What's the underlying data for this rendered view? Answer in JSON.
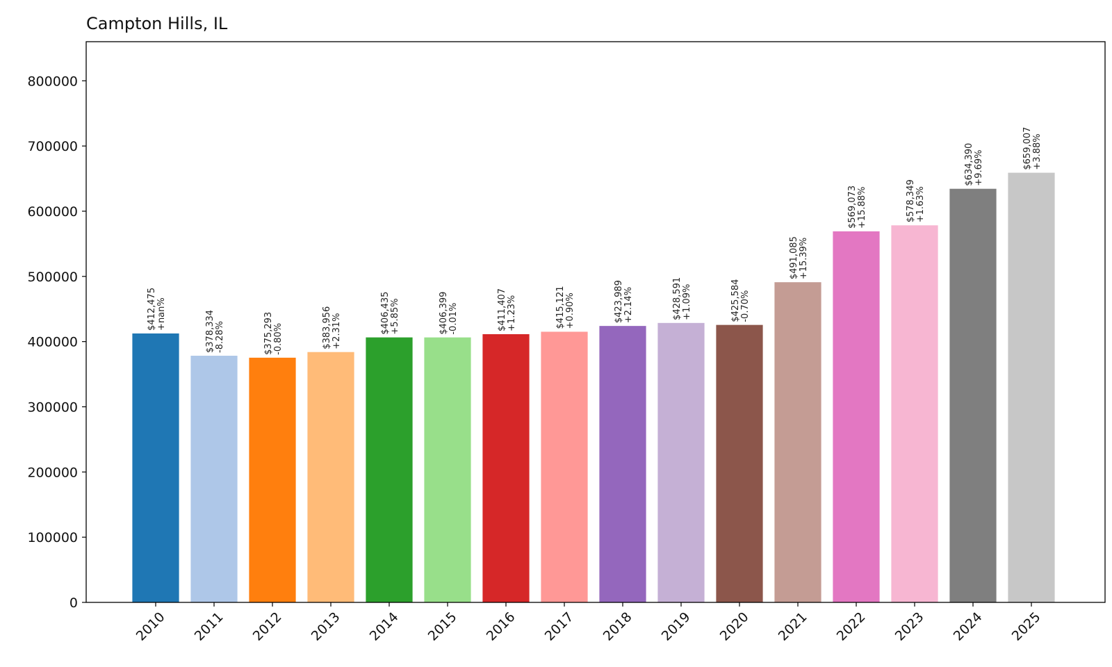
{
  "chart_data": {
    "type": "bar",
    "title": "Campton Hills, IL",
    "xlabel": "",
    "ylabel": "",
    "ylim": [
      0,
      860000
    ],
    "yticks": [
      0,
      100000,
      200000,
      300000,
      400000,
      500000,
      600000,
      700000,
      800000
    ],
    "grid": false,
    "categories": [
      "2010",
      "2011",
      "2012",
      "2013",
      "2014",
      "2015",
      "2016",
      "2017",
      "2018",
      "2019",
      "2020",
      "2021",
      "2022",
      "2023",
      "2024",
      "2025"
    ],
    "values": [
      412475,
      378334,
      375293,
      383956,
      406435,
      406399,
      411407,
      415121,
      423989,
      428591,
      425584,
      491085,
      569073,
      578349,
      634390,
      659007
    ],
    "value_labels": [
      "$412,475",
      "$378,334",
      "$375,293",
      "$383,956",
      "$406,435",
      "$406,399",
      "$411,407",
      "$415,121",
      "$423,989",
      "$428,591",
      "$425,584",
      "$491,085",
      "$569,073",
      "$578,349",
      "$634,390",
      "$659,007"
    ],
    "change_labels": [
      "+nan%",
      "-8.28%",
      "-0.80%",
      "+2.31%",
      "+5.85%",
      "-0.01%",
      "+1.23%",
      "+0.90%",
      "+2.14%",
      "+1.09%",
      "-0.70%",
      "+15.39%",
      "+15.88%",
      "+1.63%",
      "+9.69%",
      "+3.88%"
    ],
    "colors": [
      "#1f77b4",
      "#aec7e8",
      "#ff7f0e",
      "#ffbb78",
      "#2ca02c",
      "#98df8a",
      "#d62728",
      "#ff9896",
      "#9467bd",
      "#c5b0d5",
      "#8c564b",
      "#c49c94",
      "#e377c2",
      "#f7b6d2",
      "#7f7f7f",
      "#c7c7c7"
    ]
  }
}
